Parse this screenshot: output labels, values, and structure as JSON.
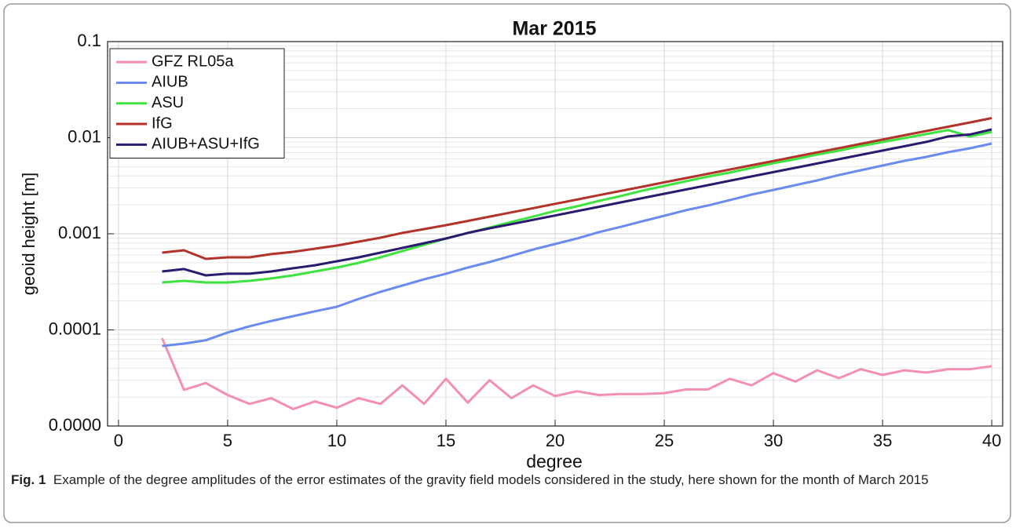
{
  "chart_data": {
    "type": "line",
    "title": "Mar 2015",
    "xlabel": "degree",
    "ylabel": "geoid height [m]",
    "log_y": true,
    "grid": true,
    "minor_grid": true,
    "legend": "upper left",
    "xlim": [
      -0.5,
      40.5
    ],
    "xticks": [
      0,
      5,
      10,
      15,
      20,
      25,
      30,
      35,
      40
    ],
    "ylim": [
      1e-05,
      0.1
    ],
    "yticks": [
      {
        "value": 1e-05,
        "label": "0.0000"
      },
      0.0001,
      0.001,
      0.01,
      0.1
    ],
    "x": [
      2,
      3,
      4,
      5,
      6,
      7,
      8,
      9,
      10,
      11,
      12,
      13,
      14,
      15,
      16,
      17,
      18,
      19,
      20,
      21,
      22,
      23,
      24,
      25,
      26,
      27,
      28,
      29,
      30,
      31,
      32,
      33,
      34,
      35,
      36,
      37,
      38,
      39,
      40
    ],
    "series": [
      {
        "name": "GFZ RL05a",
        "color": "#f48fb1",
        "values": [
          8.2e-05,
          2.38e-05,
          2.8e-05,
          2.1e-05,
          1.7e-05,
          1.95e-05,
          1.5e-05,
          1.8e-05,
          1.55e-05,
          1.95e-05,
          1.7e-05,
          2.65e-05,
          1.7e-05,
          3.1e-05,
          1.75e-05,
          3e-05,
          1.95e-05,
          2.65e-05,
          2.05e-05,
          2.3e-05,
          2.1e-05,
          2.15e-05,
          2.15e-05,
          2.2e-05,
          2.4e-05,
          2.4e-05,
          3.1e-05,
          2.65e-05,
          3.55e-05,
          2.9e-05,
          3.8e-05,
          3.15e-05,
          3.9e-05,
          3.4e-05,
          3.8e-05,
          3.6e-05,
          3.9e-05,
          3.9e-05,
          4.2e-05
        ]
      },
      {
        "name": "AIUB",
        "color": "#6a8bf0",
        "values": [
          6.8e-05,
          7.2e-05,
          7.8e-05,
          9.4e-05,
          0.000109,
          0.000124,
          0.000139,
          0.000156,
          0.000174,
          0.00021,
          0.000249,
          0.000289,
          0.000336,
          0.000384,
          0.000446,
          0.000508,
          0.00059,
          0.000687,
          0.000783,
          0.000893,
          0.00104,
          0.00118,
          0.00135,
          0.00154,
          0.00176,
          0.00197,
          0.00224,
          0.00256,
          0.00286,
          0.00321,
          0.00359,
          0.00409,
          0.00458,
          0.00513,
          0.00574,
          0.00631,
          0.00706,
          0.00776,
          0.00869
        ]
      },
      {
        "name": "ASU",
        "color": "#3fe33f",
        "values": [
          0.000312,
          0.000324,
          0.000312,
          0.000312,
          0.000324,
          0.000343,
          0.000369,
          0.000406,
          0.000446,
          0.000499,
          0.000569,
          0.000661,
          0.000769,
          0.000893,
          0.00102,
          0.00116,
          0.00133,
          0.00151,
          0.00173,
          0.00193,
          0.0022,
          0.00247,
          0.00281,
          0.00315,
          0.00352,
          0.00394,
          0.00433,
          0.00485,
          0.00543,
          0.00597,
          0.00667,
          0.00733,
          0.0082,
          0.00902,
          0.00991,
          0.0109,
          0.012,
          0.0103,
          0.0115
        ]
      },
      {
        "name": "IfG",
        "color": "#b3322a",
        "values": [
          0.000637,
          0.000674,
          0.000548,
          0.000569,
          0.000569,
          0.000614,
          0.000649,
          0.0007,
          0.000755,
          0.000828,
          0.00091,
          0.00102,
          0.00112,
          0.00123,
          0.00136,
          0.00151,
          0.00167,
          0.00185,
          0.00205,
          0.00227,
          0.00252,
          0.00279,
          0.00309,
          0.00343,
          0.0038,
          0.00421,
          0.00466,
          0.00517,
          0.00572,
          0.00634,
          0.00703,
          0.00779,
          0.00863,
          0.00956,
          0.0106,
          0.01174,
          0.013,
          0.0144,
          0.016
        ]
      },
      {
        "name": "AIUB+ASU+IfG",
        "color": "#2b1a70",
        "values": [
          0.000406,
          0.00043,
          0.000369,
          0.000384,
          0.000384,
          0.000406,
          0.000438,
          0.000471,
          0.000518,
          0.000569,
          0.000637,
          0.000713,
          0.000798,
          0.000893,
          0.00102,
          0.00114,
          0.00126,
          0.0014,
          0.00155,
          0.00172,
          0.00191,
          0.00212,
          0.00235,
          0.00261,
          0.00289,
          0.00321,
          0.00356,
          0.00395,
          0.00438,
          0.00486,
          0.00539,
          0.00597,
          0.00663,
          0.00735,
          0.00815,
          0.00904,
          0.0103,
          0.0108,
          0.0122
        ]
      }
    ]
  },
  "caption": {
    "label": "Fig. 1",
    "text": "Example of the degree amplitudes of the error estimates of the gravity field models considered in the study, here shown for the month of March 2015"
  }
}
